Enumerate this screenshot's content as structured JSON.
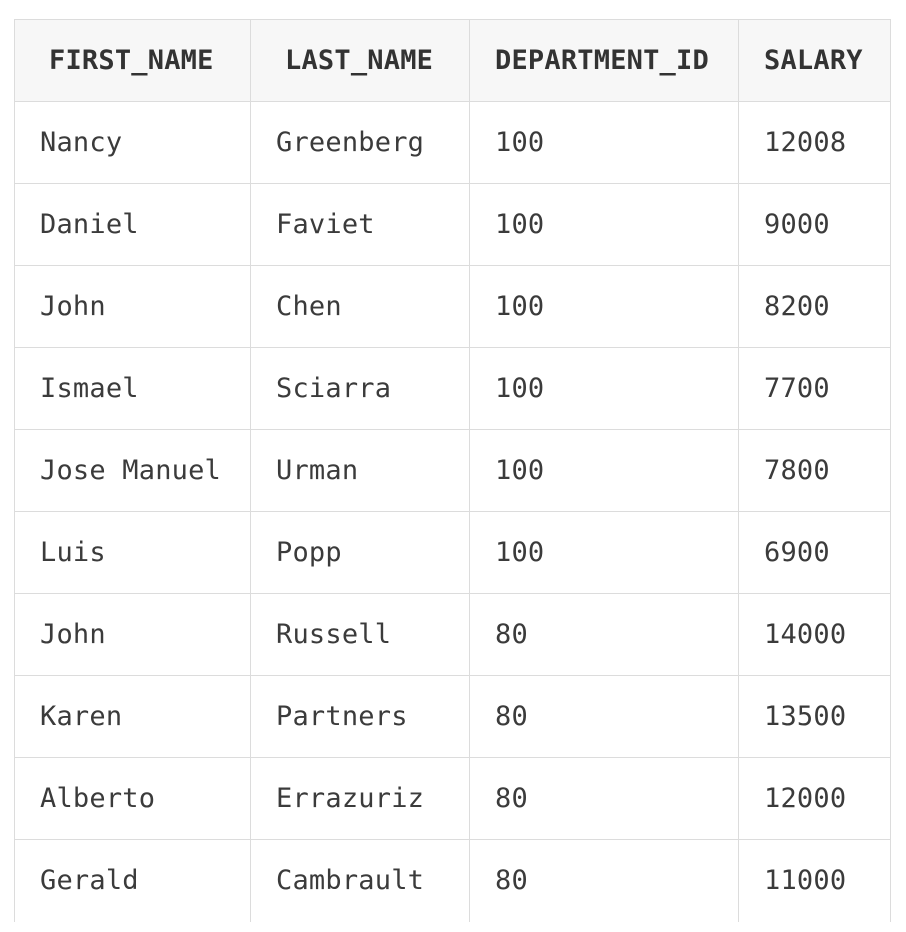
{
  "table": {
    "columns": [
      "FIRST_NAME",
      "LAST_NAME",
      "DEPARTMENT_ID",
      "SALARY"
    ],
    "rows": [
      [
        "Nancy",
        "Greenberg",
        "100",
        "12008"
      ],
      [
        "Daniel",
        "Faviet",
        "100",
        "9000"
      ],
      [
        "John",
        "Chen",
        "100",
        "8200"
      ],
      [
        "Ismael",
        "Sciarra",
        "100",
        "7700"
      ],
      [
        "Jose Manuel",
        "Urman",
        "100",
        "7800"
      ],
      [
        "Luis",
        "Popp",
        "100",
        "6900"
      ],
      [
        "John",
        "Russell",
        "80",
        "14000"
      ],
      [
        "Karen",
        "Partners",
        "80",
        "13500"
      ],
      [
        "Alberto",
        "Errazuriz",
        "80",
        "12000"
      ],
      [
        "Gerald",
        "Cambrault",
        "80",
        "11000"
      ]
    ]
  }
}
